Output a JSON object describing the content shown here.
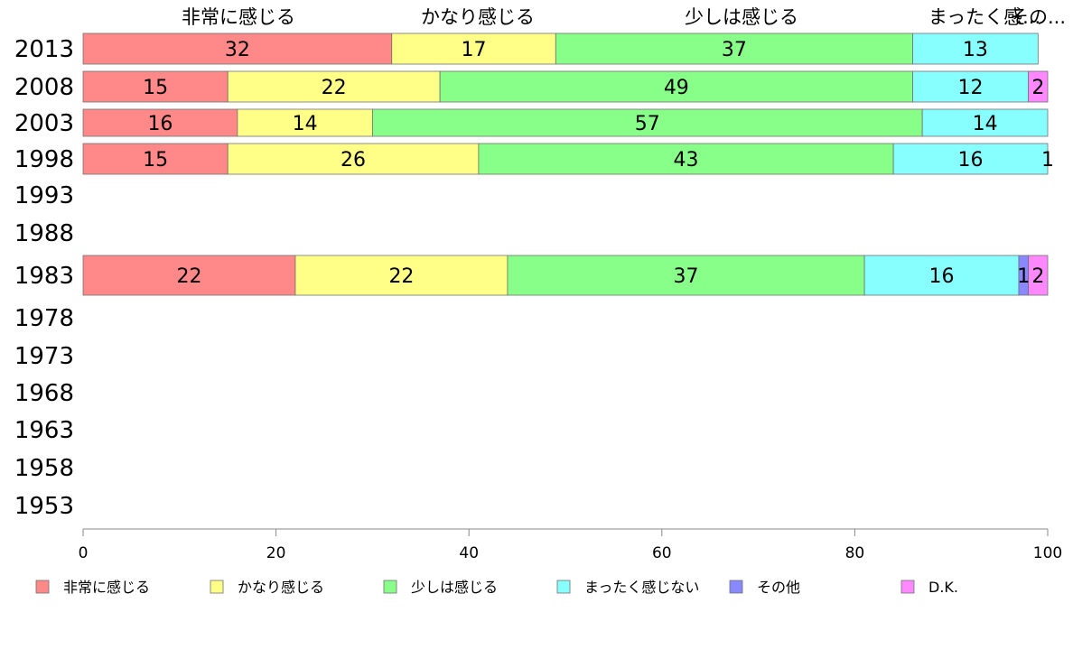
{
  "chart_data": {
    "type": "bar",
    "orientation": "horizontal",
    "stacked": true,
    "categories": [
      "2013",
      "2008",
      "2003",
      "1998",
      "1993",
      "1988",
      "1983",
      "1978",
      "1973",
      "1968",
      "1963",
      "1958",
      "1953"
    ],
    "series": [
      {
        "name": "非常に感じる",
        "color": "#ff8888",
        "values": [
          32,
          15,
          16,
          15,
          null,
          null,
          22,
          null,
          null,
          null,
          null,
          null,
          null
        ]
      },
      {
        "name": "かなり感じる",
        "color": "#ffff88",
        "values": [
          17,
          22,
          14,
          26,
          null,
          null,
          22,
          null,
          null,
          null,
          null,
          null,
          null
        ]
      },
      {
        "name": "少しは感じる",
        "color": "#88ff88",
        "values": [
          37,
          49,
          57,
          43,
          null,
          null,
          37,
          null,
          null,
          null,
          null,
          null,
          null
        ]
      },
      {
        "name": "まったく感じない",
        "color": "#88ffff",
        "values": [
          13,
          12,
          14,
          16,
          null,
          null,
          16,
          null,
          null,
          null,
          null,
          null,
          null
        ]
      },
      {
        "name": "その他",
        "color": "#8888ff",
        "values": [
          0,
          0,
          0,
          0,
          null,
          null,
          1,
          null,
          null,
          null,
          null,
          null,
          null
        ]
      },
      {
        "name": "D.K.",
        "color": "#ff88ff",
        "values": [
          0,
          2,
          0,
          1,
          null,
          null,
          2,
          null,
          null,
          null,
          null,
          null,
          null
        ]
      }
    ],
    "top_labels": [
      "非常に感じる",
      "かなり感じる",
      "少しは感じる",
      "まったく感...",
      "その..."
    ],
    "xlim": [
      0,
      100
    ],
    "xticks": [
      0,
      20,
      40,
      60,
      80,
      100
    ],
    "grid": false,
    "legend_position": "bottom"
  }
}
